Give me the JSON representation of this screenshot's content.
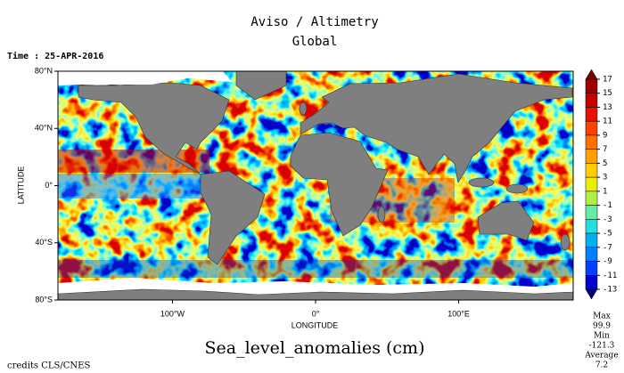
{
  "chart_data": {
    "type": "map",
    "title": "Aviso / Altimetry",
    "subtitle": "Global",
    "time_label": "Time : 25-APR-2016",
    "xlabel": "LONGITUDE",
    "ylabel": "LATITUDE",
    "xlim": [
      -180,
      180
    ],
    "ylim": [
      -80,
      80
    ],
    "xticks": [
      {
        "value": -100,
        "label": "100°W"
      },
      {
        "value": 0,
        "label": "0°"
      },
      {
        "value": 100,
        "label": "100°E"
      }
    ],
    "yticks": [
      {
        "value": 80,
        "label": "80°N"
      },
      {
        "value": 40,
        "label": "40°N"
      },
      {
        "value": 0,
        "label": "0°"
      },
      {
        "value": -40,
        "label": "40°S"
      },
      {
        "value": -80,
        "label": "80°S"
      }
    ],
    "colorbar": {
      "label": "Sea_level_anomalies (cm)",
      "ticks": [
        17,
        15,
        13,
        11,
        9,
        7,
        5,
        3,
        1,
        -1,
        -3,
        -5,
        -7,
        -9,
        -11,
        -13
      ],
      "colors": [
        "#7a0000",
        "#a00000",
        "#c80000",
        "#e81000",
        "#ff4000",
        "#ff7000",
        "#ffa000",
        "#ffd000",
        "#e8f000",
        "#b0f040",
        "#60f0a0",
        "#20e0e0",
        "#00b0f0",
        "#0080ff",
        "#0040ff",
        "#0000d0",
        "#000080"
      ]
    },
    "stats": [
      {
        "label": "Max",
        "value": 99.9
      },
      {
        "label": "Min",
        "value": -121.3
      },
      {
        "label": "Average",
        "value": 7.2
      }
    ],
    "credits": "credits CLS/CNES"
  }
}
